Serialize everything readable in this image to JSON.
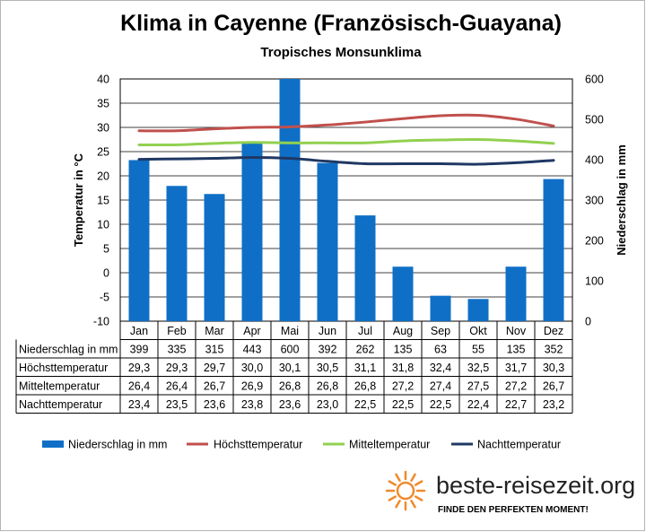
{
  "title": "Klima in Cayenne (Französisch-Guayana)",
  "subtitle": "Tropisches Monsunklima",
  "brand": {
    "name": "beste-reisezeit.org",
    "tagline": "FINDE DEN PERFEKTEN MOMENT!",
    "icon": "sun-icon",
    "accent": "#f08a2c"
  },
  "chart_data": {
    "type": "bar+line",
    "categories": [
      "Jan",
      "Feb",
      "Mar",
      "Apr",
      "Mai",
      "Jun",
      "Jul",
      "Aug",
      "Sep",
      "Okt",
      "Nov",
      "Dez"
    ],
    "left_axis": {
      "label": "Temperatur in °C",
      "ylim": [
        -10,
        40
      ],
      "ticks": [
        -10,
        -5,
        0,
        5,
        10,
        15,
        20,
        25,
        30,
        35,
        40
      ]
    },
    "right_axis": {
      "label": "Niederschlag in mm",
      "ylim": [
        0,
        600
      ],
      "ticks": [
        0,
        100,
        200,
        300,
        400,
        500,
        600
      ]
    },
    "grid": true,
    "legend_position": "bottom",
    "series": [
      {
        "name": "Niederschlag in mm",
        "type": "bar",
        "axis": "right",
        "color": "#0f6fc6",
        "values": [
          399,
          335,
          315,
          443,
          600,
          392,
          262,
          135,
          63,
          55,
          135,
          352
        ],
        "labels": [
          "399",
          "335",
          "315",
          "443",
          "600",
          "392",
          "262",
          "135",
          "63",
          "55",
          "135",
          "352"
        ]
      },
      {
        "name": "Höchsttemperatur",
        "type": "line",
        "axis": "left",
        "color": "#c0504d",
        "values": [
          29.3,
          29.3,
          29.7,
          30.0,
          30.1,
          30.5,
          31.1,
          31.8,
          32.4,
          32.5,
          31.7,
          30.3
        ],
        "labels": [
          "29,3",
          "29,3",
          "29,7",
          "30,0",
          "30,1",
          "30,5",
          "31,1",
          "31,8",
          "32,4",
          "32,5",
          "31,7",
          "30,3"
        ]
      },
      {
        "name": "Mitteltemperatur",
        "type": "line",
        "axis": "left",
        "color": "#92d050",
        "values": [
          26.4,
          26.4,
          26.7,
          26.9,
          26.8,
          26.8,
          26.8,
          27.2,
          27.4,
          27.5,
          27.2,
          26.7
        ],
        "labels": [
          "26,4",
          "26,4",
          "26,7",
          "26,9",
          "26,8",
          "26,8",
          "26,8",
          "27,2",
          "27,4",
          "27,5",
          "27,2",
          "26,7"
        ]
      },
      {
        "name": "Nachttemperatur",
        "type": "line",
        "axis": "left",
        "color": "#1f3864",
        "values": [
          23.4,
          23.5,
          23.6,
          23.8,
          23.6,
          23.0,
          22.5,
          22.5,
          22.5,
          22.4,
          22.7,
          23.2
        ],
        "labels": [
          "23,4",
          "23,5",
          "23,6",
          "23,8",
          "23,6",
          "23,0",
          "22,5",
          "22,5",
          "22,5",
          "22,4",
          "22,7",
          "23,2"
        ]
      }
    ]
  }
}
